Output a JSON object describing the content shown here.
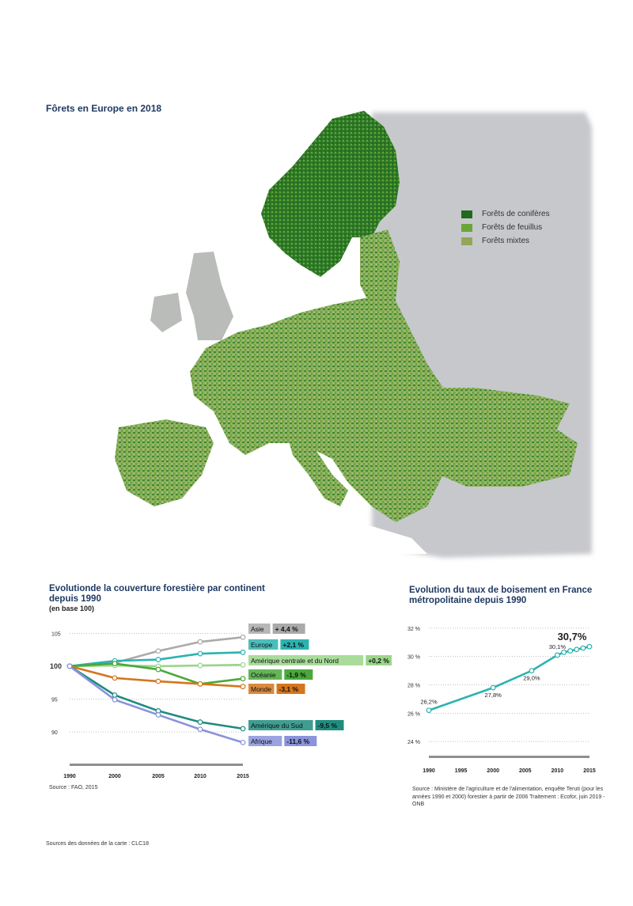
{
  "map": {
    "title": "Fôrets en Europe en 2018",
    "legend": [
      {
        "label": "Forêts de conifères",
        "color": "#1f6a1c"
      },
      {
        "label": "Forêts de feuillus",
        "color": "#6aa53a"
      },
      {
        "label": "Forêts mixtes",
        "color": "#93a65a"
      }
    ],
    "source": "Sources des données de la carte : CLC18"
  },
  "chart_data": [
    {
      "type": "line",
      "title": "Evolutionde la couverture forestière par continent depuis 1990",
      "subtitle": "(en base 100)",
      "x": [
        1990,
        2000,
        2005,
        2010,
        2015
      ],
      "yticks": [
        90,
        95,
        100,
        105
      ],
      "ylim": [
        87,
        106
      ],
      "series": [
        {
          "name": "Asie",
          "change": "+ 4,4 %",
          "color": "#aaaaaa",
          "values": [
            100,
            100.5,
            102.3,
            103.7,
            104.4
          ]
        },
        {
          "name": "Europe",
          "change": "+2,1 %",
          "color": "#2bb3b0",
          "values": [
            100,
            100.8,
            101.0,
            101.9,
            102.1
          ]
        },
        {
          "name": "Amérique centrale et du Nord",
          "change": "+0,2 %",
          "color": "#9ad68a",
          "values": [
            100,
            100.1,
            100.0,
            100.1,
            100.2
          ]
        },
        {
          "name": "Océanie",
          "change": "-1,9 %",
          "color": "#4aa83a",
          "values": [
            100,
            100.4,
            99.5,
            97.3,
            98.1
          ]
        },
        {
          "name": "Monde",
          "change": "-3,1 %",
          "color": "#d4761c",
          "values": [
            100,
            98.2,
            97.7,
            97.3,
            96.9
          ]
        },
        {
          "name": "Amérique du Sud",
          "change": "-9,5 %",
          "color": "#1f8c7e",
          "values": [
            100,
            95.6,
            93.2,
            91.5,
            90.5
          ]
        },
        {
          "name": "Afrique",
          "change": "-11,6 %",
          "color": "#8a93db",
          "values": [
            100,
            94.9,
            92.6,
            90.4,
            88.4
          ]
        }
      ],
      "source": "Source : FAO, 2015"
    },
    {
      "type": "line",
      "title": "Evolution du taux de boisement en France métropolitaine depuis 1990",
      "x": [
        1990,
        2000,
        2006,
        2010,
        2011,
        2012,
        2013,
        2014,
        2015
      ],
      "values": [
        26.2,
        27.8,
        29.0,
        30.1,
        30.3,
        30.4,
        30.5,
        30.6,
        30.7
      ],
      "point_labels": [
        "26,2%",
        "27,8%",
        "29,0%",
        "30,1%",
        "",
        "",
        "",
        "",
        "30,7%"
      ],
      "xticks": [
        "1990",
        "1995",
        "2000",
        "2005",
        "2010",
        "2015"
      ],
      "yticks": [
        "24 %",
        "26 %",
        "28 %",
        "30 %",
        "32 %"
      ],
      "ylim": [
        23,
        32.5
      ],
      "color": "#2bb3b0",
      "source": "Source : Ministère de l'agriculture et de l'alimentation, enquête Teruti (pour les années 1990 et 2000) forestier à partir de 2006 Traitement : Ecofor, juin 2019 - ONB"
    }
  ]
}
